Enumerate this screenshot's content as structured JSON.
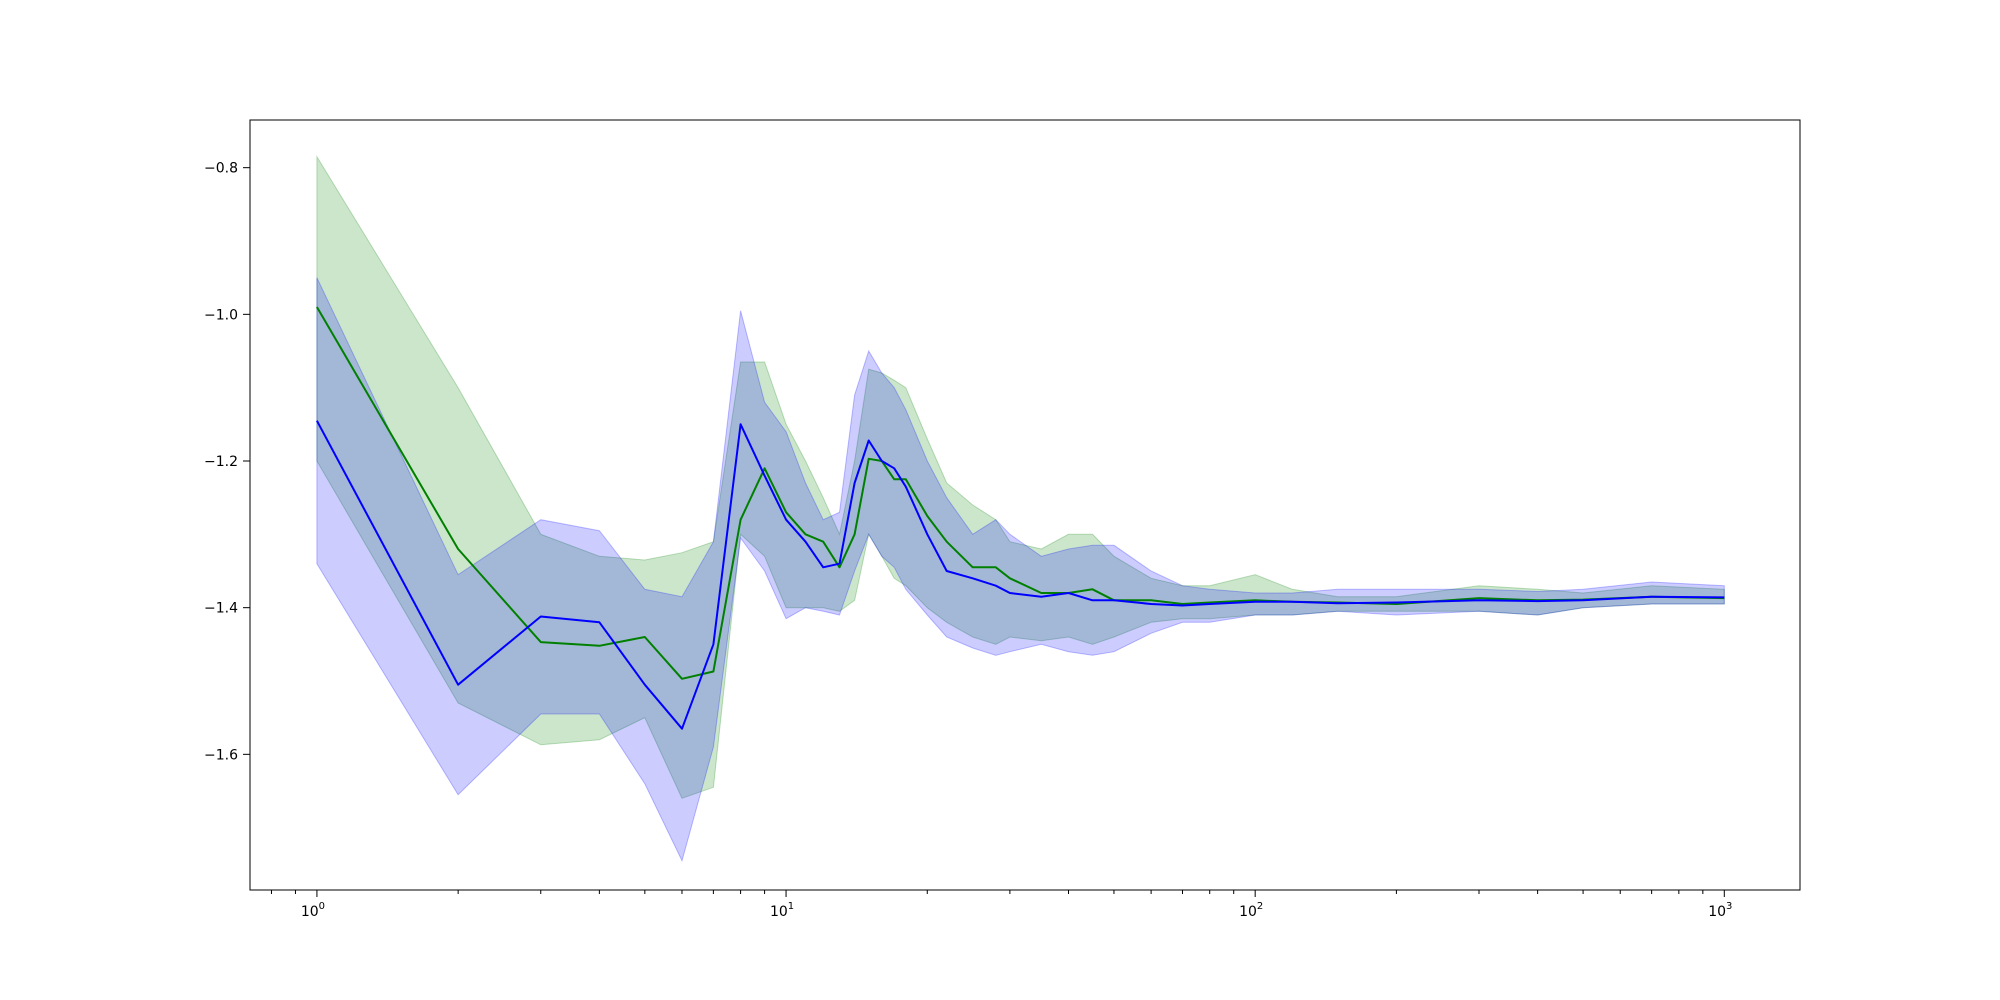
{
  "chart_data": {
    "type": "line",
    "x_scale": "log",
    "xlim": [
      0.72,
      1450
    ],
    "ylim": [
      -1.785,
      -0.735
    ],
    "grid": false,
    "x_tick_labels": [
      {
        "value": 1,
        "base": "10",
        "exp": "0"
      },
      {
        "value": 10,
        "base": "10",
        "exp": "1"
      },
      {
        "value": 100,
        "base": "10",
        "exp": "2"
      },
      {
        "value": 1000,
        "base": "10",
        "exp": "3"
      }
    ],
    "y_tick_labels": [
      {
        "value": -0.8,
        "label": "−0.8"
      },
      {
        "value": -1.0,
        "label": "−1.0"
      },
      {
        "value": -1.2,
        "label": "−1.2"
      },
      {
        "value": -1.4,
        "label": "−1.4"
      },
      {
        "value": -1.6,
        "label": "−1.6"
      }
    ],
    "series": [
      {
        "color": "#008000",
        "band_color": "#008000",
        "band_opacity": 0.2,
        "x": [
          1,
          2,
          3,
          4,
          5,
          6,
          7,
          8,
          9,
          10,
          11,
          12,
          13,
          14,
          15,
          16,
          17,
          18,
          20,
          22,
          25,
          28,
          30,
          35,
          40,
          45,
          50,
          60,
          70,
          80,
          100,
          120,
          150,
          200,
          300,
          400,
          500,
          700,
          1000
        ],
        "y": [
          -0.99,
          -1.32,
          -1.447,
          -1.452,
          -1.44,
          -1.497,
          -1.487,
          -1.28,
          -1.21,
          -1.27,
          -1.3,
          -1.31,
          -1.345,
          -1.3,
          -1.197,
          -1.2,
          -1.225,
          -1.225,
          -1.275,
          -1.31,
          -1.345,
          -1.345,
          -1.36,
          -1.38,
          -1.38,
          -1.375,
          -1.39,
          -1.39,
          -1.395,
          -1.393,
          -1.39,
          -1.392,
          -1.393,
          -1.395,
          -1.387,
          -1.39,
          -1.389,
          -1.385,
          -1.387
        ],
        "upper": [
          -0.785,
          -1.1,
          -1.3,
          -1.33,
          -1.335,
          -1.325,
          -1.31,
          -1.065,
          -1.065,
          -1.15,
          -1.2,
          -1.25,
          -1.3,
          -1.2,
          -1.075,
          -1.08,
          -1.09,
          -1.1,
          -1.17,
          -1.23,
          -1.26,
          -1.28,
          -1.31,
          -1.32,
          -1.3,
          -1.3,
          -1.33,
          -1.36,
          -1.37,
          -1.37,
          -1.355,
          -1.375,
          -1.385,
          -1.385,
          -1.37,
          -1.375,
          -1.38,
          -1.37,
          -1.375
        ],
        "lower": [
          -1.2,
          -1.53,
          -1.587,
          -1.58,
          -1.55,
          -1.66,
          -1.645,
          -1.3,
          -1.33,
          -1.4,
          -1.4,
          -1.4,
          -1.405,
          -1.39,
          -1.3,
          -1.33,
          -1.36,
          -1.37,
          -1.4,
          -1.42,
          -1.44,
          -1.45,
          -1.44,
          -1.445,
          -1.44,
          -1.45,
          -1.44,
          -1.42,
          -1.415,
          -1.415,
          -1.41,
          -1.41,
          -1.405,
          -1.405,
          -1.405,
          -1.41,
          -1.4,
          -1.395,
          -1.395
        ]
      },
      {
        "color": "#0000ff",
        "band_color": "#0000ff",
        "band_opacity": 0.2,
        "x": [
          1,
          2,
          3,
          4,
          5,
          6,
          7,
          8,
          9,
          10,
          11,
          12,
          13,
          14,
          15,
          16,
          17,
          18,
          20,
          22,
          25,
          28,
          30,
          35,
          40,
          45,
          50,
          60,
          70,
          80,
          100,
          120,
          150,
          200,
          300,
          400,
          500,
          700,
          1000
        ],
        "y": [
          -1.145,
          -1.505,
          -1.412,
          -1.42,
          -1.505,
          -1.565,
          -1.45,
          -1.15,
          -1.22,
          -1.28,
          -1.31,
          -1.345,
          -1.34,
          -1.23,
          -1.172,
          -1.2,
          -1.21,
          -1.235,
          -1.3,
          -1.35,
          -1.36,
          -1.37,
          -1.38,
          -1.385,
          -1.38,
          -1.39,
          -1.39,
          -1.395,
          -1.397,
          -1.395,
          -1.392,
          -1.392,
          -1.394,
          -1.393,
          -1.39,
          -1.391,
          -1.39,
          -1.385,
          -1.386
        ],
        "upper": [
          -0.95,
          -1.355,
          -1.28,
          -1.295,
          -1.375,
          -1.385,
          -1.31,
          -0.995,
          -1.12,
          -1.16,
          -1.23,
          -1.28,
          -1.27,
          -1.11,
          -1.05,
          -1.08,
          -1.1,
          -1.13,
          -1.2,
          -1.25,
          -1.3,
          -1.28,
          -1.3,
          -1.33,
          -1.32,
          -1.315,
          -1.315,
          -1.35,
          -1.37,
          -1.375,
          -1.38,
          -1.38,
          -1.375,
          -1.375,
          -1.375,
          -1.378,
          -1.375,
          -1.365,
          -1.37
        ],
        "lower": [
          -1.34,
          -1.655,
          -1.545,
          -1.545,
          -1.64,
          -1.745,
          -1.59,
          -1.305,
          -1.35,
          -1.415,
          -1.4,
          -1.405,
          -1.41,
          -1.35,
          -1.3,
          -1.33,
          -1.345,
          -1.375,
          -1.41,
          -1.44,
          -1.455,
          -1.465,
          -1.46,
          -1.45,
          -1.46,
          -1.465,
          -1.46,
          -1.435,
          -1.42,
          -1.42,
          -1.41,
          -1.41,
          -1.405,
          -1.41,
          -1.405,
          -1.41,
          -1.4,
          -1.395,
          -1.395
        ]
      }
    ]
  }
}
